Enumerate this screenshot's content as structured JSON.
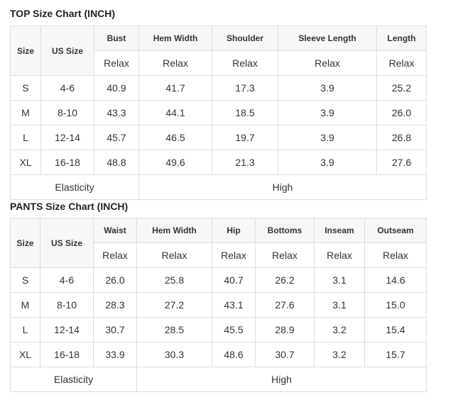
{
  "top": {
    "title": "TOP Size Chart (INCH)",
    "size_label": "Size",
    "us_label": "US Size",
    "columns": [
      "Bust",
      "Hem Width",
      "Shoulder",
      "Sleeve Length",
      "Length"
    ],
    "fit": [
      "Relax",
      "Relax",
      "Relax",
      "Relax",
      "Relax"
    ],
    "rows": [
      [
        "S",
        "4-6",
        "40.9",
        "41.7",
        "17.3",
        "3.9",
        "25.2"
      ],
      [
        "M",
        "8-10",
        "43.3",
        "44.1",
        "18.5",
        "3.9",
        "26.0"
      ],
      [
        "L",
        "12-14",
        "45.7",
        "46.5",
        "19.7",
        "3.9",
        "26.8"
      ],
      [
        "XL",
        "16-18",
        "48.8",
        "49.6",
        "21.3",
        "3.9",
        "27.6"
      ]
    ],
    "elasticity_label": "Elasticity",
    "elasticity_value": "High"
  },
  "pants": {
    "title": "PANTS Size Chart (INCH)",
    "size_label": "Size",
    "us_label": "US Size",
    "columns": [
      "Waist",
      "Hem Width",
      "Hip",
      "Bottoms",
      "Inseam",
      "Outseam"
    ],
    "fit": [
      "Relax",
      "Relax",
      "Relax",
      "Relax",
      "Relax",
      "Relax"
    ],
    "rows": [
      [
        "S",
        "4-6",
        "26.0",
        "25.8",
        "40.7",
        "26.2",
        "3.1",
        "14.6"
      ],
      [
        "M",
        "8-10",
        "28.3",
        "27.2",
        "43.1",
        "27.6",
        "3.1",
        "15.0"
      ],
      [
        "L",
        "12-14",
        "30.7",
        "28.5",
        "45.5",
        "28.9",
        "3.2",
        "15.4"
      ],
      [
        "XL",
        "16-18",
        "33.9",
        "30.3",
        "48.6",
        "30.7",
        "3.2",
        "15.7"
      ]
    ],
    "elasticity_label": "Elasticity",
    "elasticity_value": "High"
  }
}
